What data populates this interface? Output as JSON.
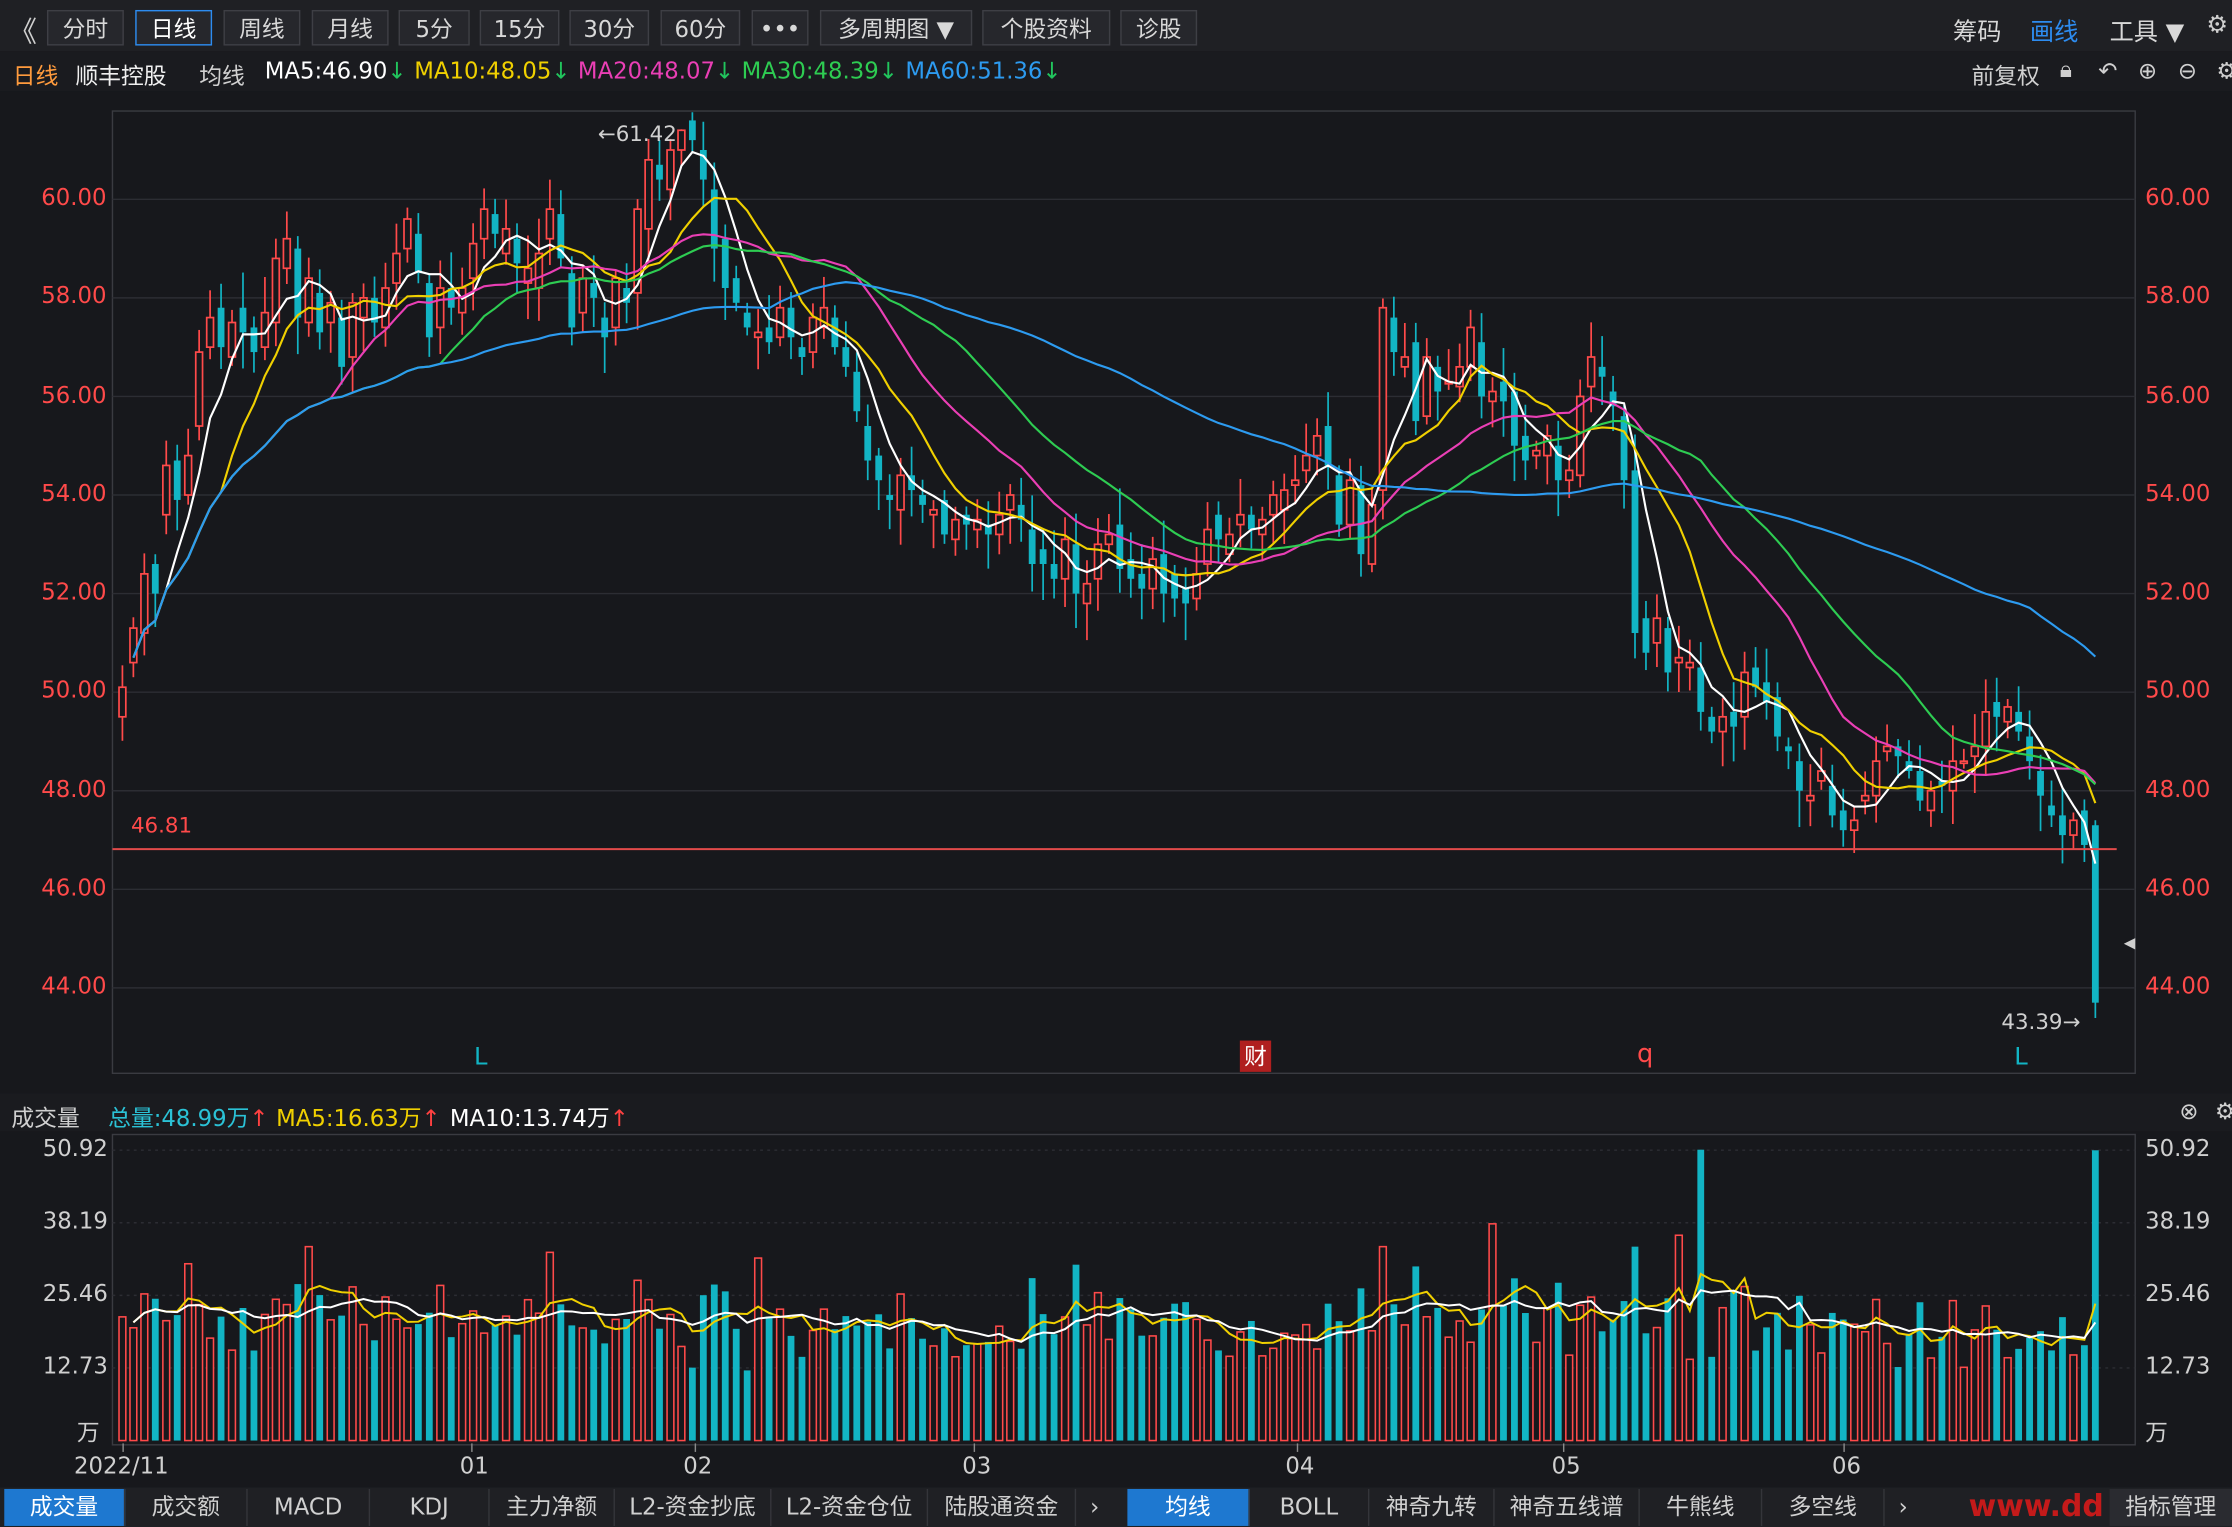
{
  "toolbar": {
    "back_label": "《",
    "buttons": [
      "分时",
      "日线",
      "周线",
      "月线",
      "5分",
      "15分",
      "30分",
      "60分",
      "•••",
      "多周期图 ▼",
      "个股资料",
      "诊股"
    ],
    "right": {
      "chips": "筹码",
      "draw": "画线",
      "tools": "工具 ▼",
      "settings_icon": "gear-icon"
    }
  },
  "info": {
    "period": "日线",
    "stock_name": "顺丰控股",
    "avg_label": "均线",
    "ma5": "MA5:46.90",
    "ma10": "MA10:48.05",
    "ma20": "MA20:48.07",
    "ma30": "MA30:48.39",
    "ma60": "MA60:51.36",
    "arrow": "↓",
    "adjust": "前复权",
    "icons": [
      "lock-icon",
      "undo-icon",
      "zoom-in-icon",
      "zoom-out-icon",
      "settings-icon"
    ]
  },
  "colors": {
    "up": "#ff4a4a",
    "down": "#12b4c4",
    "ma5": "#ffffff",
    "ma10": "#f0d000",
    "ma20": "#ea3fb5",
    "ma30": "#2ecc52",
    "ma60": "#2d9bf0",
    "accent": "#2d8cf0"
  },
  "main_chart": {
    "price_ticks": [
      "60.00",
      "58.00",
      "56.00",
      "54.00",
      "52.00",
      "50.00",
      "48.00",
      "46.00",
      "44.00"
    ],
    "high_label": "←61.42",
    "low_label": "43.39→",
    "support_label": "46.81",
    "markers": [
      "L",
      "财",
      "q",
      "L"
    ]
  },
  "volume": {
    "title": "成交量",
    "total": "总量:48.99万",
    "ma5": "MA5:16.63万",
    "ma10": "MA10:13.74万",
    "arrow": "↑",
    "ticks": [
      "50.92",
      "38.19",
      "25.46",
      "12.73",
      "万"
    ],
    "dates": [
      "2022/11",
      "01",
      "02",
      "03",
      "04",
      "05",
      "06"
    ]
  },
  "bottom_tabs": {
    "left": [
      "成交量",
      "成交额",
      "MACD",
      "KDJ",
      "主力净额",
      "L2-资金抄底",
      "L2-资金仓位",
      "陆股通资金"
    ],
    "right": [
      "均线",
      "BOLL",
      "神奇九转",
      "神奇五线谱",
      "牛熊线",
      "多空线"
    ],
    "more": "›",
    "manage": "指标管理",
    "watermark": "www.dd"
  },
  "chart_data": {
    "type": "candlestick",
    "price_range": [
      43,
      62.6
    ],
    "closes": [
      50.1,
      51.3,
      52.4,
      52.0,
      54.6,
      53.9,
      54.8,
      56.9,
      57.6,
      57.0,
      57.5,
      57.3,
      56.9,
      57.7,
      58.8,
      59.2,
      57.6,
      58.4,
      57.3,
      57.9,
      56.6,
      57.9,
      58.0,
      57.5,
      58.2,
      58.9,
      59.6,
      58.5,
      57.2,
      58.2,
      57.8,
      58.2,
      59.1,
      59.8,
      59.3,
      59.4,
      58.7,
      58.6,
      58.9,
      59.8,
      58.8,
      57.4,
      58.4,
      58.0,
      57.2,
      58.4,
      57.9,
      59.8,
      60.8,
      60.4,
      61.0,
      61.4,
      61.2,
      60.4,
      59.0,
      58.2,
      57.9,
      57.4,
      57.3,
      57.1,
      57.8,
      57.2,
      56.8,
      57.6,
      57.8,
      57.0,
      56.6,
      55.7,
      54.7,
      54.3,
      53.9,
      54.4,
      54.1,
      53.8,
      53.7,
      53.2,
      53.5,
      53.4,
      53.5,
      53.2,
      53.6,
      54.0,
      53.5,
      52.6,
      52.6,
      52.3,
      53.1,
      52.0,
      52.2,
      53.0,
      53.2,
      52.5,
      52.3,
      52.1,
      52.7,
      52.0,
      51.9,
      51.8,
      52.4,
      53.3,
      53.1,
      53.2,
      53.6,
      53.3,
      53.5,
      54.0,
      54.1,
      54.3,
      54.8,
      55.2,
      54.6,
      53.4,
      54.3,
      52.8,
      53.8,
      57.8,
      56.9,
      56.8,
      55.5,
      56.8,
      56.1,
      56.3,
      56.6,
      57.4,
      56.0,
      56.1,
      55.9,
      55.0,
      54.7,
      54.9,
      55.2,
      54.3,
      54.5,
      56.0,
      56.8,
      56.4,
      55.8,
      54.3,
      51.2,
      50.8,
      51.5,
      50.4,
      50.7,
      50.6,
      49.6,
      49.2,
      49.5,
      49.3,
      50.4,
      50.1,
      49.8,
      49.1,
      48.8,
      48.0,
      47.9,
      48.4,
      47.5,
      47.2,
      47.4,
      47.9,
      48.6,
      48.9,
      48.7,
      48.4,
      47.8,
      48.0,
      48.1,
      48.6,
      48.6,
      48.9,
      49.6,
      49.5,
      49.7,
      49.2,
      48.6,
      47.9,
      47.5,
      47.1,
      47.4,
      46.9,
      43.7
    ],
    "opens": [
      49.5,
      50.6,
      51.2,
      52.6,
      53.6,
      54.7,
      54.0,
      55.4,
      57.0,
      57.8,
      56.8,
      57.8,
      57.4,
      57.0,
      57.5,
      58.6,
      59.0,
      57.5,
      58.1,
      57.5,
      57.6,
      56.8,
      57.6,
      58.0,
      57.4,
      58.3,
      59.0,
      59.3,
      58.3,
      57.4,
      58.2,
      57.7,
      58.4,
      59.2,
      59.7,
      58.9,
      59.2,
      58.3,
      58.2,
      59.2,
      59.7,
      58.5,
      57.7,
      58.3,
      57.6,
      57.4,
      58.2,
      58.1,
      59.4,
      60.7,
      60.2,
      61.0,
      61.6,
      61.0,
      60.2,
      59.2,
      58.4,
      57.7,
      57.2,
      57.4,
      57.2,
      57.8,
      57.0,
      56.9,
      57.4,
      57.6,
      57.0,
      56.5,
      55.4,
      54.8,
      54.0,
      53.7,
      54.4,
      54.0,
      53.6,
      53.9,
      53.1,
      53.6,
      53.3,
      53.4,
      53.2,
      53.7,
      53.8,
      53.3,
      52.9,
      52.6,
      52.3,
      53.0,
      51.8,
      52.3,
      53.0,
      53.4,
      52.7,
      52.4,
      52.1,
      52.8,
      52.4,
      52.1,
      51.9,
      52.6,
      53.6,
      52.8,
      53.4,
      53.6,
      53.2,
      53.6,
      53.7,
      54.2,
      54.5,
      54.8,
      55.4,
      54.4,
      53.4,
      54.2,
      52.6,
      54.1,
      57.6,
      56.6,
      57.1,
      55.6,
      56.6,
      56.3,
      56.2,
      56.6,
      57.1,
      55.9,
      56.3,
      56.1,
      55.2,
      54.8,
      54.8,
      55.0,
      54.3,
      54.4,
      56.2,
      56.6,
      56.1,
      55.6,
      54.5,
      51.5,
      51.0,
      51.3,
      50.6,
      50.5,
      50.5,
      49.5,
      49.2,
      49.6,
      49.5,
      50.5,
      50.2,
      49.9,
      48.9,
      48.6,
      47.8,
      48.2,
      48.1,
      47.6,
      47.2,
      47.8,
      47.9,
      48.8,
      48.9,
      48.6,
      48.4,
      47.6,
      48.2,
      48.0,
      48.6,
      48.7,
      48.9,
      49.8,
      49.4,
      49.6,
      49.1,
      48.4,
      47.7,
      47.5,
      47.1,
      47.6,
      47.3
    ]
  }
}
